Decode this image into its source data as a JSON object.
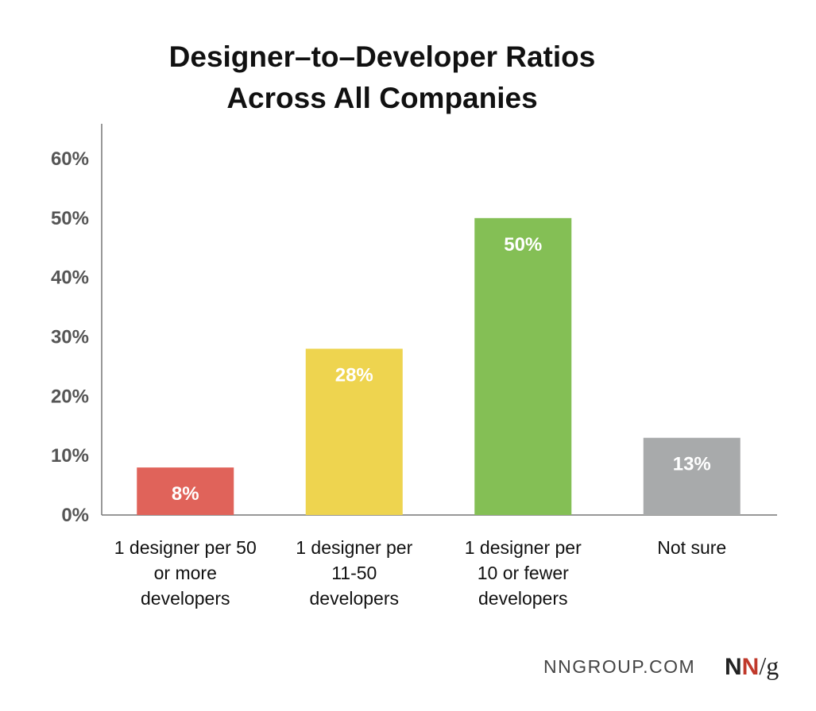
{
  "chart_data": {
    "type": "bar",
    "title": [
      "Designer–to–Developer Ratios",
      "Across All Companies"
    ],
    "categories": [
      [
        "1 designer per 50",
        "or more",
        "developers"
      ],
      [
        "1 designer per",
        "11-50",
        "developers"
      ],
      [
        "1 designer per",
        "10 or fewer",
        "developers"
      ],
      [
        "Not sure"
      ]
    ],
    "values": [
      8,
      28,
      50,
      13
    ],
    "data_labels": [
      "8%",
      "28%",
      "50%",
      "13%"
    ],
    "colors": [
      "#e0635a",
      "#eed44f",
      "#84bf55",
      "#a8aaab"
    ],
    "ylim": [
      0,
      60
    ],
    "yticks": [
      {
        "value": 0,
        "label": "0%"
      },
      {
        "value": 10,
        "label": "10%"
      },
      {
        "value": 20,
        "label": "20%"
      },
      {
        "value": 30,
        "label": "30%"
      },
      {
        "value": 40,
        "label": "40%"
      },
      {
        "value": 50,
        "label": "50%"
      },
      {
        "value": 60,
        "label": "60%"
      }
    ],
    "grid": false,
    "legend": "none"
  },
  "footer": {
    "source_text": "NNGROUP.COM",
    "logo": {
      "n1": "N",
      "n2": "N",
      "slash": "/",
      "g": "g",
      "n1_color": "#222222",
      "n2_color": "#c0392b"
    }
  }
}
